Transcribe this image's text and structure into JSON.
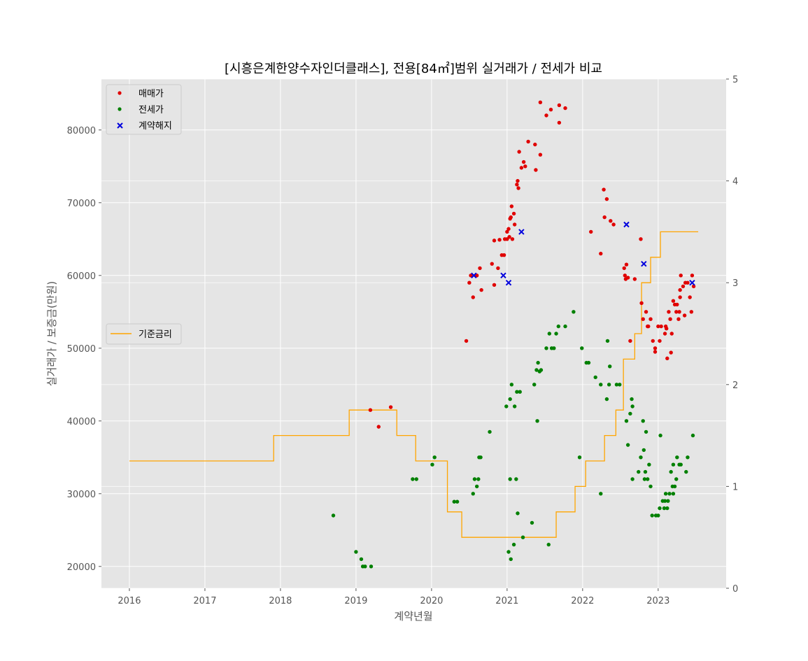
{
  "chart_data": {
    "type": "scatter",
    "title": "[시흥은계한양수자인더클래스], 전용[84㎡]범위 실거래가 / 전세가 비교",
    "xlabel": "계약년월",
    "ylabel": "실거래가 / 보증금(만원)",
    "y2label": "",
    "xlim": [
      2015.63,
      2023.9
    ],
    "ylim": [
      17000,
      87000
    ],
    "y2lim": [
      0,
      5
    ],
    "x_ticks": [
      2016,
      2017,
      2018,
      2019,
      2020,
      2021,
      2022,
      2023
    ],
    "x_tick_labels": [
      "2016",
      "2017",
      "2018",
      "2019",
      "2020",
      "2021",
      "2022",
      "2023"
    ],
    "y_ticks": [
      20000,
      30000,
      40000,
      50000,
      60000,
      70000,
      80000
    ],
    "y_tick_labels": [
      "20000",
      "30000",
      "40000",
      "50000",
      "60000",
      "70000",
      "80000"
    ],
    "y2_ticks": [
      0,
      1,
      2,
      3,
      4,
      5
    ],
    "y2_tick_labels": [
      "0",
      "1",
      "2",
      "3",
      "4",
      "5"
    ],
    "grid": true,
    "legend_placement": "upper-left",
    "legend2_placement": "center-left",
    "series": [
      {
        "name": "매매가",
        "marker": "dot",
        "color": "#e00000",
        "axis": "left",
        "points": [
          [
            2019.19,
            41500
          ],
          [
            2019.3,
            39200
          ],
          [
            2019.46,
            41900
          ],
          [
            2020.46,
            51000
          ],
          [
            2020.5,
            59000
          ],
          [
            2020.52,
            60000
          ],
          [
            2020.55,
            57000
          ],
          [
            2020.6,
            60000
          ],
          [
            2020.64,
            61000
          ],
          [
            2020.66,
            58000
          ],
          [
            2020.8,
            61600
          ],
          [
            2020.83,
            58700
          ],
          [
            2020.83,
            64800
          ],
          [
            2020.88,
            61000
          ],
          [
            2020.9,
            64900
          ],
          [
            2020.93,
            62800
          ],
          [
            2020.96,
            62800
          ],
          [
            2020.97,
            65000
          ],
          [
            2021.0,
            65000
          ],
          [
            2021.0,
            66000
          ],
          [
            2021.02,
            66400
          ],
          [
            2021.03,
            65300
          ],
          [
            2021.04,
            67800
          ],
          [
            2021.05,
            68000
          ],
          [
            2021.06,
            69500
          ],
          [
            2021.07,
            65000
          ],
          [
            2021.09,
            68500
          ],
          [
            2021.1,
            67000
          ],
          [
            2021.13,
            72500
          ],
          [
            2021.14,
            73000
          ],
          [
            2021.15,
            72000
          ],
          [
            2021.16,
            77000
          ],
          [
            2021.19,
            74800
          ],
          [
            2021.22,
            75600
          ],
          [
            2021.24,
            75000
          ],
          [
            2021.28,
            78400
          ],
          [
            2021.37,
            78000
          ],
          [
            2021.38,
            74500
          ],
          [
            2021.44,
            76600
          ],
          [
            2021.44,
            83800
          ],
          [
            2021.52,
            82000
          ],
          [
            2021.58,
            82800
          ],
          [
            2021.69,
            81000
          ],
          [
            2021.69,
            83400
          ],
          [
            2021.77,
            83000
          ],
          [
            2022.11,
            66000
          ],
          [
            2022.24,
            63000
          ],
          [
            2022.28,
            71800
          ],
          [
            2022.29,
            68000
          ],
          [
            2022.32,
            70500
          ],
          [
            2022.37,
            67500
          ],
          [
            2022.41,
            67000
          ],
          [
            2022.55,
            61000
          ],
          [
            2022.56,
            60000
          ],
          [
            2022.57,
            59500
          ],
          [
            2022.58,
            61500
          ],
          [
            2022.6,
            59700
          ],
          [
            2022.63,
            51000
          ],
          [
            2022.69,
            59500
          ],
          [
            2022.77,
            65000
          ],
          [
            2022.78,
            56200
          ],
          [
            2022.8,
            54000
          ],
          [
            2022.84,
            55000
          ],
          [
            2022.86,
            53000
          ],
          [
            2022.87,
            53000
          ],
          [
            2022.9,
            54000
          ],
          [
            2022.93,
            51000
          ],
          [
            2022.96,
            50000
          ],
          [
            2022.96,
            49500
          ],
          [
            2023.0,
            53000
          ],
          [
            2023.02,
            51000
          ],
          [
            2023.04,
            53000
          ],
          [
            2023.09,
            52000
          ],
          [
            2023.1,
            53000
          ],
          [
            2023.11,
            52700
          ],
          [
            2023.12,
            48600
          ],
          [
            2023.14,
            55000
          ],
          [
            2023.16,
            54000
          ],
          [
            2023.17,
            49400
          ],
          [
            2023.18,
            52000
          ],
          [
            2023.2,
            56500
          ],
          [
            2023.22,
            56000
          ],
          [
            2023.24,
            55000
          ],
          [
            2023.25,
            56000
          ],
          [
            2023.27,
            54000
          ],
          [
            2023.28,
            55000
          ],
          [
            2023.29,
            57000
          ],
          [
            2023.29,
            58000
          ],
          [
            2023.3,
            60000
          ],
          [
            2023.33,
            58500
          ],
          [
            2023.35,
            54500
          ],
          [
            2023.36,
            59000
          ],
          [
            2023.39,
            59000
          ],
          [
            2023.42,
            57000
          ],
          [
            2023.44,
            55000
          ],
          [
            2023.45,
            60000
          ],
          [
            2023.47,
            58500
          ]
        ]
      },
      {
        "name": "전세가",
        "marker": "dot",
        "color": "#008000",
        "axis": "left",
        "points": [
          [
            2018.7,
            27000
          ],
          [
            2019.0,
            22000
          ],
          [
            2019.07,
            21000
          ],
          [
            2019.09,
            20000
          ],
          [
            2019.12,
            20000
          ],
          [
            2019.2,
            20000
          ],
          [
            2019.75,
            32000
          ],
          [
            2019.8,
            32000
          ],
          [
            2020.01,
            34000
          ],
          [
            2020.04,
            35000
          ],
          [
            2020.3,
            28900
          ],
          [
            2020.34,
            28900
          ],
          [
            2020.55,
            30000
          ],
          [
            2020.57,
            32000
          ],
          [
            2020.6,
            31000
          ],
          [
            2020.62,
            32000
          ],
          [
            2020.63,
            35000
          ],
          [
            2020.65,
            35000
          ],
          [
            2020.77,
            38500
          ],
          [
            2020.99,
            42000
          ],
          [
            2021.02,
            22000
          ],
          [
            2021.04,
            43000
          ],
          [
            2021.04,
            32000
          ],
          [
            2021.05,
            21000
          ],
          [
            2021.06,
            45000
          ],
          [
            2021.09,
            23000
          ],
          [
            2021.1,
            42000
          ],
          [
            2021.12,
            32000
          ],
          [
            2021.13,
            44000
          ],
          [
            2021.14,
            27300
          ],
          [
            2021.17,
            44000
          ],
          [
            2021.21,
            24000
          ],
          [
            2021.33,
            26000
          ],
          [
            2021.36,
            45000
          ],
          [
            2021.39,
            47000
          ],
          [
            2021.4,
            40000
          ],
          [
            2021.41,
            48000
          ],
          [
            2021.43,
            46800
          ],
          [
            2021.45,
            47000
          ],
          [
            2021.52,
            50000
          ],
          [
            2021.55,
            23000
          ],
          [
            2021.56,
            52000
          ],
          [
            2021.59,
            50000
          ],
          [
            2021.62,
            50000
          ],
          [
            2021.65,
            52000
          ],
          [
            2021.68,
            53000
          ],
          [
            2021.77,
            53000
          ],
          [
            2021.88,
            55000
          ],
          [
            2021.96,
            35000
          ],
          [
            2021.99,
            50000
          ],
          [
            2022.05,
            48000
          ],
          [
            2022.08,
            48000
          ],
          [
            2022.17,
            46000
          ],
          [
            2022.24,
            45000
          ],
          [
            2022.24,
            30000
          ],
          [
            2022.32,
            43000
          ],
          [
            2022.33,
            51000
          ],
          [
            2022.36,
            47500
          ],
          [
            2022.35,
            45000
          ],
          [
            2022.45,
            45000
          ],
          [
            2022.49,
            45000
          ],
          [
            2022.58,
            40000
          ],
          [
            2022.6,
            36700
          ],
          [
            2022.63,
            41000
          ],
          [
            2022.65,
            43000
          ],
          [
            2022.66,
            42000
          ],
          [
            2022.66,
            32000
          ],
          [
            2022.74,
            33000
          ],
          [
            2022.77,
            35000
          ],
          [
            2022.8,
            40000
          ],
          [
            2022.81,
            36000
          ],
          [
            2022.82,
            32000
          ],
          [
            2022.83,
            33000
          ],
          [
            2022.84,
            38500
          ],
          [
            2022.86,
            32000
          ],
          [
            2022.88,
            34000
          ],
          [
            2022.9,
            31000
          ],
          [
            2022.92,
            27000
          ],
          [
            2022.97,
            27000
          ],
          [
            2023.0,
            27000
          ],
          [
            2023.02,
            28000
          ],
          [
            2023.03,
            38000
          ],
          [
            2023.06,
            29000
          ],
          [
            2023.08,
            28000
          ],
          [
            2023.09,
            29000
          ],
          [
            2023.1,
            30000
          ],
          [
            2023.12,
            28000
          ],
          [
            2023.13,
            29000
          ],
          [
            2023.15,
            30000
          ],
          [
            2023.17,
            33000
          ],
          [
            2023.19,
            31000
          ],
          [
            2023.2,
            34000
          ],
          [
            2023.2,
            30000
          ],
          [
            2023.22,
            31000
          ],
          [
            2023.24,
            32000
          ],
          [
            2023.25,
            35000
          ],
          [
            2023.28,
            34000
          ],
          [
            2023.3,
            34000
          ],
          [
            2023.37,
            33000
          ],
          [
            2023.39,
            35000
          ],
          [
            2023.46,
            38000
          ]
        ]
      },
      {
        "name": "계약해지",
        "marker": "x",
        "color": "#0000dd",
        "axis": "left",
        "points": [
          [
            2020.56,
            60000
          ],
          [
            2020.95,
            60000
          ],
          [
            2021.02,
            59000
          ],
          [
            2021.19,
            66000
          ],
          [
            2022.58,
            67000
          ],
          [
            2022.81,
            61600
          ],
          [
            2023.45,
            59000
          ]
        ]
      },
      {
        "name": "기준금리",
        "type": "step",
        "color": "#ffa500",
        "axis": "right",
        "points": [
          [
            2016.0,
            1.25
          ],
          [
            2017.91,
            1.5
          ],
          [
            2018.91,
            1.75
          ],
          [
            2019.54,
            1.5
          ],
          [
            2019.79,
            1.25
          ],
          [
            2020.21,
            0.75
          ],
          [
            2020.4,
            0.5
          ],
          [
            2021.65,
            0.75
          ],
          [
            2021.9,
            1.0
          ],
          [
            2022.04,
            1.25
          ],
          [
            2022.29,
            1.5
          ],
          [
            2022.44,
            1.75
          ],
          [
            2022.54,
            2.25
          ],
          [
            2022.69,
            2.5
          ],
          [
            2022.78,
            3.0
          ],
          [
            2022.9,
            3.25
          ],
          [
            2023.03,
            3.5
          ],
          [
            2023.53,
            3.5
          ]
        ]
      }
    ]
  }
}
